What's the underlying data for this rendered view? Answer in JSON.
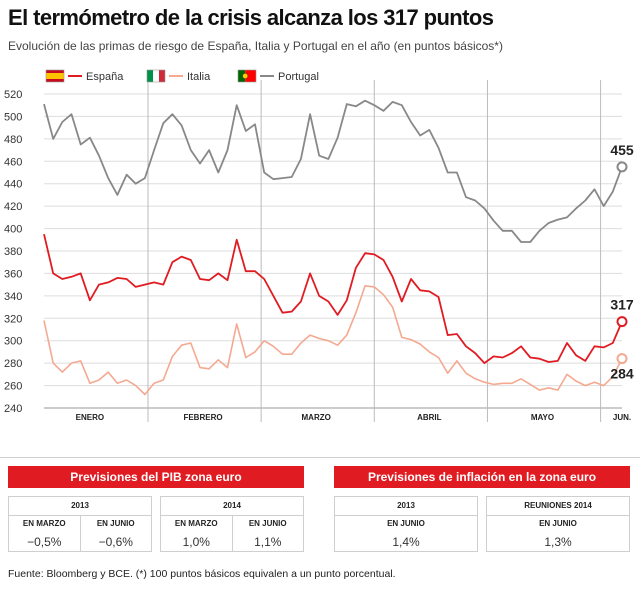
{
  "title": "El termómetro de la crisis alcanza los 317 puntos",
  "subtitle": "Evolución de las primas de riesgo de España, Italia y Portugal en el año (en puntos básicos*)",
  "chart_data": {
    "type": "line",
    "ylim": [
      240,
      520
    ],
    "yticks": [
      240,
      260,
      280,
      300,
      320,
      340,
      360,
      380,
      400,
      420,
      440,
      460,
      480,
      500,
      520
    ],
    "xlim": [
      1,
      190
    ],
    "x_tick_labels": [
      {
        "label": "ENERO",
        "x": 16
      },
      {
        "label": "FEBRERO",
        "x": 53
      },
      {
        "label": "MARZO",
        "x": 90
      },
      {
        "label": "ABRIL",
        "x": 127
      },
      {
        "label": "MAYO",
        "x": 164
      },
      {
        "label": "JUN.",
        "x": 190
      }
    ],
    "month_boundaries": [
      35,
      72,
      109,
      146,
      183
    ],
    "grid": "horizontal",
    "legend_position": "top-left",
    "series": [
      {
        "name": "España",
        "color": "#e11b22",
        "end_label": "317",
        "x": [
          1,
          4,
          7,
          10,
          13,
          16,
          19,
          22,
          25,
          28,
          31,
          34,
          37,
          40,
          43,
          46,
          49,
          52,
          55,
          58,
          61,
          64,
          67,
          70,
          73,
          76,
          79,
          82,
          85,
          88,
          91,
          94,
          97,
          100,
          103,
          106,
          109,
          112,
          115,
          118,
          121,
          124,
          127,
          130,
          133,
          136,
          139,
          142,
          145,
          148,
          151,
          154,
          157,
          160,
          163,
          166,
          169,
          172,
          175,
          178,
          181,
          184,
          187,
          190
        ],
        "values": [
          395,
          360,
          355,
          357,
          360,
          336,
          350,
          352,
          356,
          355,
          348,
          350,
          352,
          350,
          370,
          375,
          372,
          355,
          354,
          360,
          354,
          390,
          362,
          362,
          355,
          340,
          325,
          326,
          335,
          360,
          340,
          335,
          323,
          336,
          365,
          378,
          377,
          372,
          357,
          335,
          355,
          345,
          344,
          339,
          305,
          306,
          295,
          289,
          280,
          286,
          285,
          289,
          295,
          285,
          284,
          281,
          282,
          298,
          287,
          282,
          295,
          294,
          298,
          317
        ]
      },
      {
        "name": "Italia",
        "color": "#f4a990",
        "end_label": "284",
        "x": [
          1,
          4,
          7,
          10,
          13,
          16,
          19,
          22,
          25,
          28,
          31,
          34,
          37,
          40,
          43,
          46,
          49,
          52,
          55,
          58,
          61,
          64,
          67,
          70,
          73,
          76,
          79,
          82,
          85,
          88,
          91,
          94,
          97,
          100,
          103,
          106,
          109,
          112,
          115,
          118,
          121,
          124,
          127,
          130,
          133,
          136,
          139,
          142,
          145,
          148,
          151,
          154,
          157,
          160,
          163,
          166,
          169,
          172,
          175,
          178,
          181,
          184,
          187,
          190
        ],
        "values": [
          318,
          280,
          272,
          280,
          282,
          262,
          265,
          272,
          262,
          265,
          260,
          252,
          262,
          265,
          286,
          296,
          298,
          276,
          275,
          283,
          276,
          315,
          285,
          290,
          300,
          295,
          288,
          288,
          298,
          305,
          302,
          300,
          296,
          305,
          325,
          349,
          348,
          341,
          330,
          303,
          301,
          297,
          290,
          285,
          271,
          282,
          271,
          266,
          263,
          261,
          262,
          262,
          266,
          261,
          256,
          258,
          256,
          270,
          264,
          260,
          263,
          260,
          268,
          284
        ]
      },
      {
        "name": "Portugal",
        "color": "#888888",
        "end_label": "455",
        "x": [
          1,
          4,
          7,
          10,
          13,
          16,
          19,
          22,
          25,
          28,
          31,
          34,
          37,
          40,
          43,
          46,
          49,
          52,
          55,
          58,
          61,
          64,
          67,
          70,
          73,
          76,
          79,
          82,
          85,
          88,
          91,
          94,
          97,
          100,
          103,
          106,
          109,
          112,
          115,
          118,
          121,
          124,
          127,
          130,
          133,
          136,
          139,
          142,
          145,
          148,
          151,
          154,
          157,
          160,
          163,
          166,
          169,
          172,
          175,
          178,
          181,
          184,
          187,
          190
        ],
        "values": [
          511,
          480,
          495,
          502,
          475,
          481,
          465,
          445,
          430,
          448,
          440,
          445,
          470,
          494,
          502,
          492,
          470,
          458,
          470,
          450,
          470,
          510,
          487,
          493,
          450,
          444,
          445,
          446,
          462,
          502,
          465,
          462,
          481,
          511,
          509,
          514,
          510,
          505,
          513,
          510,
          495,
          483,
          488,
          472,
          450,
          450,
          428,
          425,
          418,
          407,
          398,
          398,
          388,
          388,
          398,
          405,
          408,
          410,
          418,
          425,
          435,
          420,
          433,
          455
        ]
      }
    ]
  },
  "gdp_panel": {
    "header": "Previsiones del PIB zona euro",
    "groups": [
      {
        "year": "2013",
        "cols": [
          {
            "label": "EN MARZO",
            "value": "−0,5%"
          },
          {
            "label": "EN JUNIO",
            "value": "−0,6%"
          }
        ]
      },
      {
        "year": "2014",
        "cols": [
          {
            "label": "EN MARZO",
            "value": "1,0%"
          },
          {
            "label": "EN JUNIO",
            "value": "1,1%"
          }
        ]
      }
    ]
  },
  "inflation_panel": {
    "header": "Previsiones de inflación en la zona euro",
    "groups": [
      {
        "year": "2013",
        "cols": [
          {
            "label": "EN JUNIO",
            "value": "1,4%"
          }
        ]
      },
      {
        "year": "REUNIONES 2014",
        "cols": [
          {
            "label": "EN JUNIO",
            "value": "1,3%"
          }
        ]
      }
    ]
  },
  "footer": "Fuente: Bloomberg y BCE. (*) 100 puntos básicos equivalen a un punto porcentual."
}
